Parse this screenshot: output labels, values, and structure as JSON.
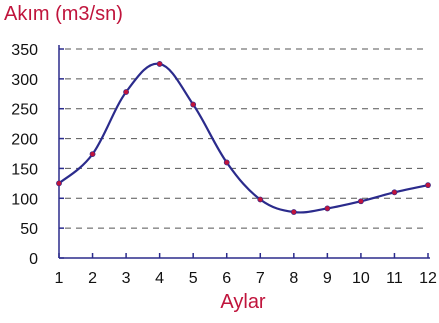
{
  "chart_data": {
    "type": "line",
    "ylabel": "Akım (m3/sn)",
    "xlabel": "Aylar",
    "x": [
      1,
      2,
      3,
      4,
      5,
      6,
      7,
      8,
      9,
      10,
      11,
      12
    ],
    "series": [
      {
        "values": [
          125,
          174,
          278,
          325,
          257,
          160,
          98,
          77,
          83,
          95,
          110,
          122
        ]
      }
    ],
    "xlim": [
      1,
      12
    ],
    "ylim": [
      0,
      350
    ],
    "yticks": [
      0,
      50,
      100,
      150,
      200,
      250,
      300,
      350
    ],
    "xticks": [
      1,
      2,
      3,
      4,
      5,
      6,
      7,
      8,
      9,
      10,
      11,
      12
    ],
    "grid": "horizontal-dashed",
    "colors": {
      "line": "#2b2b8c",
      "marker": "#c0143c",
      "axis": "#2b2b8c",
      "label": "#c0143c",
      "tick_text": "#111111",
      "grid": "#555555"
    }
  }
}
